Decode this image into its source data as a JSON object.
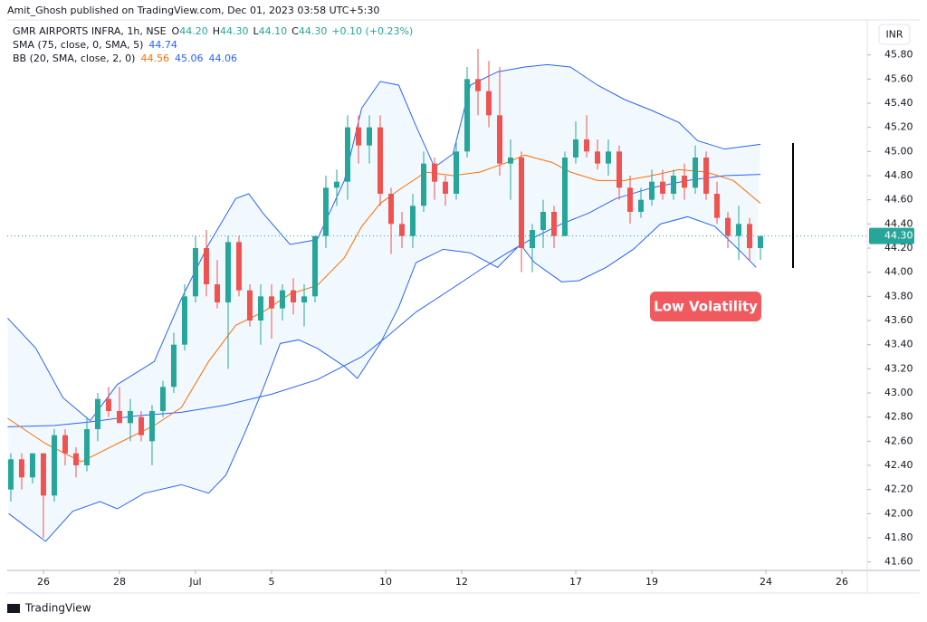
{
  "attribution": "Amit_Ghosh published on TradingView.com, Dec 01, 2023 03:58 UTC+5:30",
  "legend": {
    "symbol": "GMR AIRPORTS INFRA, 1h, NSE",
    "ohlc_labels": [
      "O",
      "H",
      "L",
      "C"
    ],
    "ohlc_values": [
      "44.20",
      "44.30",
      "44.10",
      "44.30"
    ],
    "change": "+0.10 (+0.23%)",
    "sma": "SMA (75, close, 0, SMA, 5)",
    "sma_value": "44.74",
    "bb": "BB (20, SMA, close, 2, 0)",
    "bb_values": [
      "44.56",
      "45.06",
      "44.06"
    ]
  },
  "currency": "INR",
  "footer": "TradingView",
  "chart_data": {
    "type": "candlestick",
    "up_color": "#26a69a",
    "down_color": "#ef5350",
    "grid": false,
    "annotation": "Low Volatility",
    "last_price_label": "44.30",
    "xlim": [
      -0.33,
      78.83
    ],
    "xticks": [
      {
        "value": 3,
        "label": "26"
      },
      {
        "value": 10,
        "label": "28"
      },
      {
        "value": 17,
        "label": "Jul"
      },
      {
        "value": 24,
        "label": "5"
      },
      {
        "value": 34.5,
        "label": "10"
      },
      {
        "value": 41.5,
        "label": "12"
      },
      {
        "value": 52,
        "label": "17"
      },
      {
        "value": 59,
        "label": "19"
      },
      {
        "value": 69.5,
        "label": "24"
      },
      {
        "value": 76.5,
        "label": "26"
      }
    ],
    "ylim": [
      41.53,
      46.09
    ],
    "yticks": [
      {
        "value": 41.6,
        "label": "41.60"
      },
      {
        "value": 41.8,
        "label": "41.80"
      },
      {
        "value": 42,
        "label": "42.00"
      },
      {
        "value": 42.2,
        "label": "42.20"
      },
      {
        "value": 42.4,
        "label": "42.40"
      },
      {
        "value": 42.6,
        "label": "42.60"
      },
      {
        "value": 42.8,
        "label": "42.80"
      },
      {
        "value": 43,
        "label": "43.00"
      },
      {
        "value": 43.2,
        "label": "43.20"
      },
      {
        "value": 43.4,
        "label": "43.40"
      },
      {
        "value": 43.6,
        "label": "43.60"
      },
      {
        "value": 43.8,
        "label": "43.80"
      },
      {
        "value": 44,
        "label": "44.00"
      },
      {
        "value": 44.2,
        "label": "44.20"
      },
      {
        "value": 44.4,
        "label": "44.40"
      },
      {
        "value": 44.6,
        "label": "44.60"
      },
      {
        "value": 44.8,
        "label": "44.80"
      },
      {
        "value": 45,
        "label": "45.00"
      },
      {
        "value": 45.2,
        "label": "45.20"
      },
      {
        "value": 45.4,
        "label": "45.40"
      },
      {
        "value": 45.6,
        "label": "45.60"
      },
      {
        "value": 45.8,
        "label": "45.80"
      }
    ],
    "x": [
      0,
      1,
      2,
      3,
      4,
      5,
      6,
      7,
      8,
      9,
      10,
      11,
      12,
      13,
      14,
      15,
      16,
      17,
      18,
      19,
      20,
      21,
      22,
      23,
      24,
      25,
      26,
      27,
      28,
      29,
      30,
      31,
      32,
      33,
      34,
      35,
      36,
      37,
      38,
      39,
      40,
      41,
      42,
      43,
      44,
      45,
      46,
      47,
      48,
      49,
      50,
      51,
      52,
      53,
      54,
      55,
      56,
      57,
      58,
      59,
      60,
      61,
      62,
      63,
      64,
      65,
      66,
      67,
      68,
      69
    ],
    "open": [
      42.2,
      42.45,
      42.3,
      42.5,
      42.15,
      42.65,
      42.5,
      42.4,
      42.7,
      42.95,
      42.85,
      42.75,
      42.8,
      42.6,
      42.85,
      43.05,
      43.4,
      43.8,
      44.2,
      43.9,
      43.75,
      44.25,
      43.85,
      43.6,
      43.8,
      43.7,
      43.85,
      43.75,
      43.8,
      44.3,
      44.7,
      44.75,
      45.2,
      45.05,
      45.2,
      44.65,
      44.4,
      44.3,
      44.55,
      44.9,
      44.75,
      44.65,
      45.0,
      45.6,
      45.5,
      45.3,
      44.9,
      44.95,
      44.2,
      44.35,
      44.5,
      44.3,
      44.95,
      45.1,
      45.0,
      44.9,
      45.0,
      44.7,
      44.5,
      44.6,
      44.75,
      44.65,
      44.8,
      44.7,
      44.95,
      44.65,
      44.45,
      44.3,
      44.4,
      44.2
    ],
    "high": [
      42.5,
      42.5,
      42.5,
      42.5,
      42.7,
      42.7,
      42.55,
      42.8,
      43.0,
      43.05,
      43.05,
      42.95,
      42.85,
      42.9,
      43.1,
      43.5,
      43.9,
      44.3,
      44.35,
      44.1,
      44.3,
      44.3,
      43.9,
      43.9,
      43.9,
      43.9,
      43.95,
      43.9,
      44.3,
      44.8,
      44.85,
      45.3,
      45.3,
      45.3,
      45.3,
      44.7,
      44.5,
      44.65,
      45.0,
      44.95,
      44.8,
      45.1,
      45.7,
      45.85,
      45.75,
      45.7,
      45.1,
      45.0,
      44.4,
      44.6,
      44.55,
      45.0,
      45.25,
      45.3,
      45.1,
      45.1,
      45.05,
      44.8,
      44.7,
      44.85,
      44.85,
      44.85,
      44.9,
      45.05,
      45.0,
      44.75,
      44.5,
      44.55,
      44.45,
      44.3
    ],
    "low": [
      42.1,
      42.2,
      42.25,
      41.8,
      42.1,
      42.4,
      42.3,
      42.35,
      42.6,
      42.8,
      42.75,
      42.6,
      42.6,
      42.4,
      42.8,
      43.0,
      43.35,
      43.75,
      43.8,
      43.7,
      43.2,
      43.8,
      43.55,
      43.4,
      43.45,
      43.6,
      43.65,
      43.55,
      43.75,
      44.2,
      44.55,
      44.6,
      44.9,
      44.9,
      44.55,
      44.15,
      44.2,
      44.2,
      44.5,
      44.6,
      44.55,
      44.6,
      44.95,
      45.3,
      45.2,
      44.8,
      44.6,
      44.0,
      44.0,
      44.2,
      44.2,
      44.3,
      44.9,
      44.95,
      44.85,
      44.8,
      44.6,
      44.4,
      44.45,
      44.55,
      44.6,
      44.6,
      44.6,
      44.65,
      44.6,
      44.4,
      44.2,
      44.1,
      44.1,
      44.1
    ],
    "close": [
      42.45,
      42.3,
      42.5,
      42.15,
      42.65,
      42.5,
      42.4,
      42.7,
      42.95,
      42.85,
      42.75,
      42.85,
      42.65,
      42.85,
      43.05,
      43.4,
      43.8,
      44.2,
      43.9,
      43.75,
      44.25,
      43.85,
      43.6,
      43.8,
      43.7,
      43.85,
      43.75,
      43.8,
      44.3,
      44.7,
      44.75,
      45.2,
      45.05,
      45.2,
      44.65,
      44.4,
      44.3,
      44.55,
      44.9,
      44.75,
      44.65,
      45.0,
      45.6,
      45.5,
      45.3,
      44.9,
      44.95,
      44.2,
      44.35,
      44.5,
      44.3,
      44.95,
      45.1,
      45.0,
      44.9,
      45.0,
      44.7,
      44.5,
      44.6,
      44.75,
      44.65,
      44.8,
      44.7,
      44.95,
      44.65,
      44.45,
      44.3,
      44.4,
      44.2,
      44.3
    ],
    "series": [
      {
        "name": "SMA",
        "color": "#2962ff",
        "x": [
          -0.3,
          4,
          7.3,
          11.5,
          15.7,
          19.8,
          24,
          28.2,
          32.3,
          34.8,
          37.3,
          40.7,
          43.2,
          45.7,
          48.2,
          50.7,
          53.2,
          55.7,
          59,
          62.3,
          65.7,
          69
        ],
        "values": [
          42.72,
          42.73,
          42.76,
          42.81,
          42.84,
          42.9,
          42.99,
          43.11,
          43.3,
          43.48,
          43.67,
          43.87,
          44.02,
          44.16,
          44.29,
          44.4,
          44.49,
          44.61,
          44.7,
          44.76,
          44.8,
          44.81
        ]
      },
      {
        "name": "BB Upper",
        "color": "#2962ff",
        "x": [
          -0.3,
          2.3,
          4.8,
          7.3,
          9.8,
          13.2,
          15.7,
          18.2,
          20.7,
          21.9,
          23.2,
          25.7,
          28.2,
          30.7,
          32.3,
          34,
          35.7,
          37.3,
          39,
          40.7,
          42.3,
          44.8,
          47.3,
          49.4,
          51.5,
          54,
          56.5,
          59,
          61.5,
          63.2,
          65.7,
          69
        ],
        "values": [
          43.62,
          43.37,
          42.96,
          42.77,
          43.07,
          43.26,
          43.78,
          44.23,
          44.61,
          44.65,
          44.49,
          44.23,
          44.27,
          44.76,
          45.36,
          45.58,
          45.55,
          45.21,
          44.87,
          44.98,
          45.55,
          45.66,
          45.7,
          45.72,
          45.7,
          45.55,
          45.43,
          45.34,
          45.24,
          45.09,
          45.02,
          45.06
        ]
      },
      {
        "name": "BB Basis",
        "color": "#ff6d00",
        "x": [
          -0.3,
          3.2,
          6.5,
          9.8,
          13.2,
          15.7,
          18.2,
          20.7,
          23.2,
          25.7,
          28.2,
          30.7,
          32.3,
          34,
          35.7,
          38.2,
          40.7,
          43.2,
          45.7,
          47.3,
          49.8,
          51.5,
          54,
          56.5,
          59,
          61.5,
          64,
          66.5,
          69
        ],
        "values": [
          42.79,
          42.58,
          42.43,
          42.58,
          42.73,
          42.88,
          43.26,
          43.56,
          43.67,
          43.82,
          43.89,
          44.12,
          44.38,
          44.57,
          44.68,
          44.83,
          44.8,
          44.83,
          44.91,
          44.97,
          44.91,
          44.83,
          44.76,
          44.76,
          44.8,
          44.85,
          44.83,
          44.76,
          44.57
        ]
      },
      {
        "name": "BB Lower",
        "color": "#2962ff",
        "x": [
          -0.2,
          3.2,
          5.7,
          8.2,
          9.8,
          12.3,
          15.7,
          18.2,
          19.8,
          21.5,
          23.2,
          24.8,
          26.5,
          28.2,
          30.7,
          31.9,
          34,
          35.7,
          37.3,
          39.8,
          42.3,
          44.8,
          46.9,
          48.2,
          50.7,
          52.3,
          54.8,
          57.3,
          59.8,
          62.3,
          64.8,
          67.3,
          68.6
        ],
        "values": [
          42.0,
          41.77,
          42.02,
          42.1,
          42.04,
          42.17,
          42.24,
          42.17,
          42.32,
          42.66,
          43.03,
          43.41,
          43.44,
          43.37,
          43.22,
          43.12,
          43.41,
          43.71,
          44.08,
          44.19,
          44.16,
          44.04,
          44.23,
          44.08,
          43.92,
          43.93,
          44.04,
          44.19,
          44.4,
          44.46,
          44.38,
          44.16,
          44.04
        ]
      }
    ]
  }
}
